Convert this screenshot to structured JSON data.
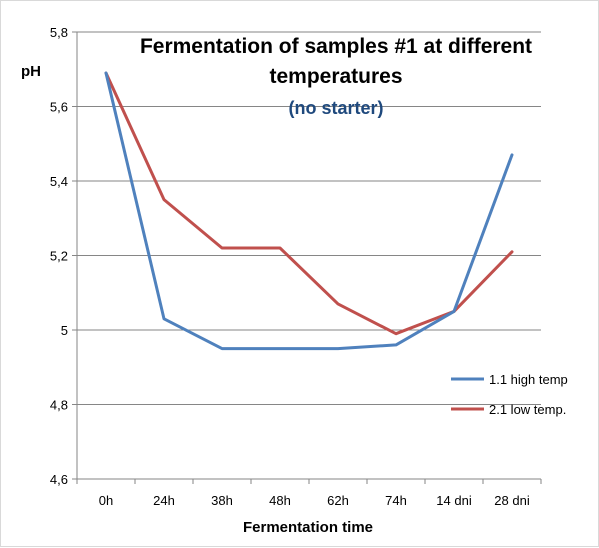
{
  "chart_data": {
    "type": "line",
    "title": "Fermentation of samples #1 at different temperatures",
    "title_lines": [
      "Fermentation of samples #1 at different",
      "temperatures"
    ],
    "subtitle": "(no starter)",
    "subtitle_color": "#1f497d",
    "xlabel": "Fermentation time",
    "ylabel": "pH",
    "categories": [
      "0h",
      "24h",
      "38h",
      "48h",
      "62h",
      "74h",
      "14 dni",
      "28 dni"
    ],
    "ylim": [
      4.6,
      5.8
    ],
    "yticks": [
      "4,6",
      "4,8",
      "5",
      "5,2",
      "5,4",
      "5,6",
      "5,8"
    ],
    "ytick_values": [
      4.6,
      4.8,
      5.0,
      5.2,
      5.4,
      5.6,
      5.8
    ],
    "grid": "horizontal",
    "legend_position": "right",
    "series": [
      {
        "name": "1.1 high temp",
        "color": "#4f81bd",
        "values": [
          5.69,
          5.03,
          4.95,
          4.95,
          4.95,
          4.96,
          5.05,
          5.47
        ]
      },
      {
        "name": "2.1 low temp.",
        "color": "#c0504d",
        "values": [
          5.69,
          5.35,
          5.22,
          5.22,
          5.07,
          4.99,
          5.05,
          5.21
        ]
      }
    ]
  }
}
